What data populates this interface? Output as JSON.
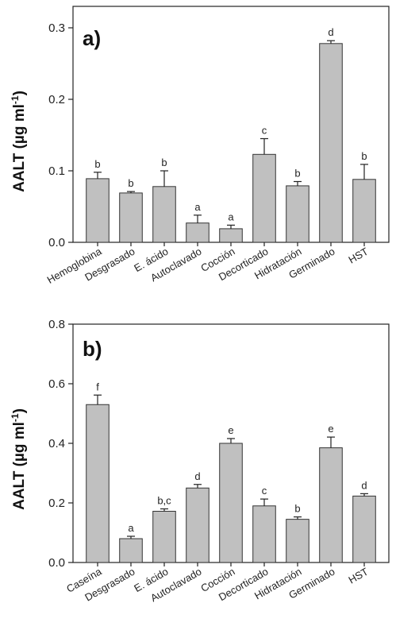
{
  "chart_data": [
    {
      "type": "bar",
      "panel_label": "a)",
      "ylabel": "AALT (µg ml",
      "ylabel_sup": "-1",
      "ylabel_close": ")",
      "ylim": [
        0,
        0.33
      ],
      "yticks": [
        0.0,
        0.1,
        0.2,
        0.3
      ],
      "ytick_labels": [
        "0.0",
        "0.1",
        "0.2",
        "0.3"
      ],
      "categories": [
        "Hemoglobina",
        "Desgrasado",
        "E. ácido",
        "Autoclavado",
        "Cocción",
        "Decorticado",
        "Hidratación",
        "Germinado",
        "HST"
      ],
      "values": [
        0.089,
        0.069,
        0.078,
        0.027,
        0.019,
        0.123,
        0.079,
        0.278,
        0.088
      ],
      "errors": [
        0.009,
        0.002,
        0.022,
        0.011,
        0.005,
        0.022,
        0.006,
        0.004,
        0.021
      ],
      "significance": [
        "b",
        "b",
        "b",
        "a",
        "a",
        "c",
        "b",
        "d",
        "b"
      ],
      "bar_color": "#c0c0c0",
      "grid": false,
      "legend": "none"
    },
    {
      "type": "bar",
      "panel_label": "b)",
      "ylabel": "AALT (µg ml",
      "ylabel_sup": "-1",
      "ylabel_close": ")",
      "ylim": [
        0,
        0.8
      ],
      "yticks": [
        0.0,
        0.2,
        0.4,
        0.6,
        0.8
      ],
      "ytick_labels": [
        "0.0",
        "0.2",
        "0.4",
        "0.6",
        "0.8"
      ],
      "categories": [
        "Caseína",
        "Desgrasado",
        "E. ácido",
        "Autoclavado",
        "Cocción",
        "Decorticado",
        "Hidratación",
        "Germinado",
        "HST"
      ],
      "values": [
        0.53,
        0.08,
        0.172,
        0.25,
        0.4,
        0.19,
        0.145,
        0.385,
        0.223
      ],
      "errors": [
        0.032,
        0.008,
        0.008,
        0.012,
        0.016,
        0.023,
        0.008,
        0.036,
        0.008
      ],
      "significance": [
        "f",
        "a",
        "b,c",
        "d",
        "e",
        "c",
        "b",
        "e",
        "d"
      ],
      "bar_color": "#c0c0c0",
      "grid": false,
      "legend": "none"
    }
  ]
}
